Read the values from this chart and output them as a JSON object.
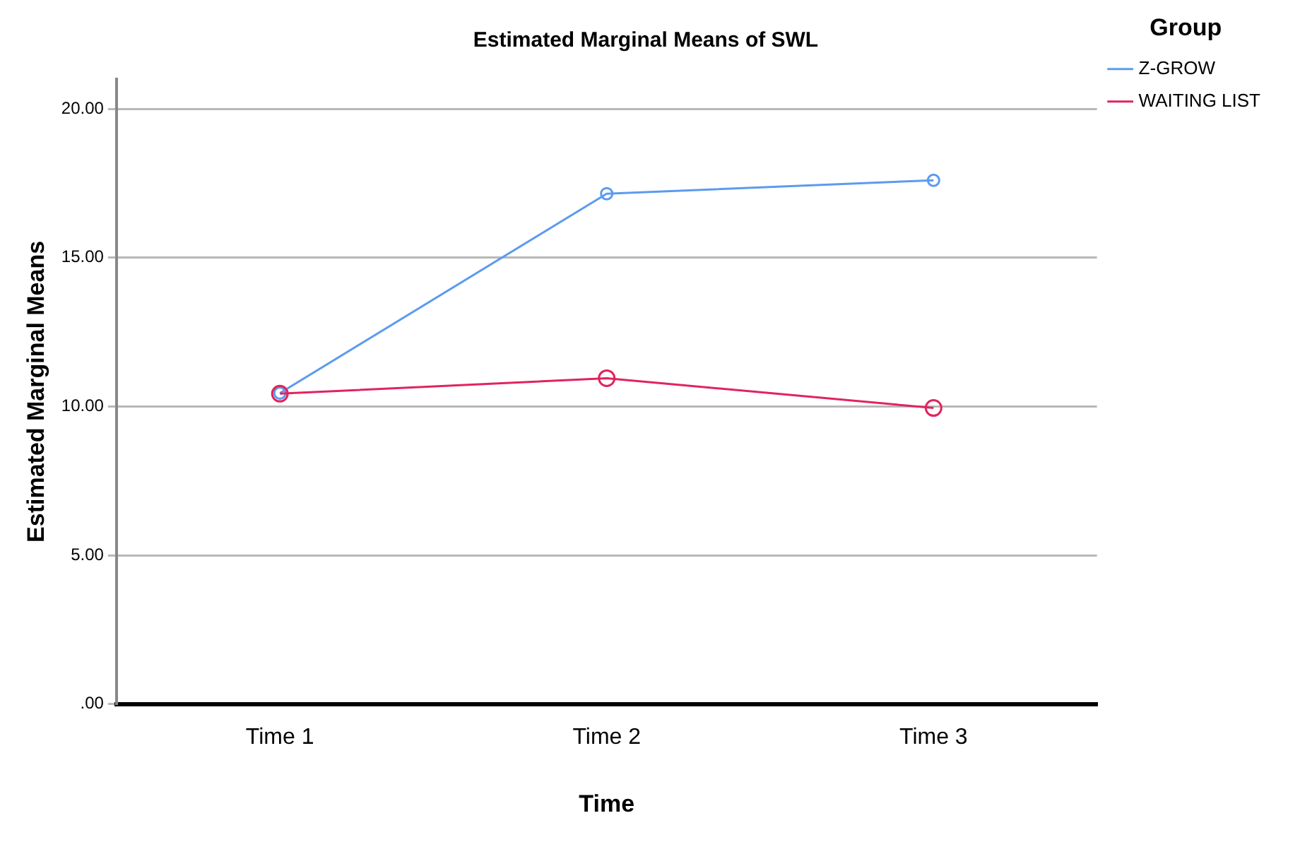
{
  "chart_data": {
    "type": "line",
    "title": "Estimated Marginal Means of SWL",
    "xlabel": "Time",
    "ylabel": "Estimated Marginal Means",
    "legend_title": "Group",
    "categories": [
      "Time 1",
      "Time 2",
      "Time 3"
    ],
    "series": [
      {
        "name": "Z-GROW",
        "color": "#5b9bef",
        "values": [
          10.45,
          17.15,
          17.6
        ]
      },
      {
        "name": "WAITING LIST",
        "color": "#e0245e",
        "values": [
          10.43,
          10.95,
          9.95
        ]
      }
    ],
    "ylim": [
      0,
      21
    ],
    "yticks": [
      {
        "value": 0,
        "label": ".00"
      },
      {
        "value": 5,
        "label": "5.00"
      },
      {
        "value": 10,
        "label": "10.00"
      },
      {
        "value": 15,
        "label": "15.00"
      },
      {
        "value": 20,
        "label": "20.00"
      }
    ],
    "grid": "y",
    "legend": "top right",
    "marker": "circle",
    "line_style": "solid"
  }
}
